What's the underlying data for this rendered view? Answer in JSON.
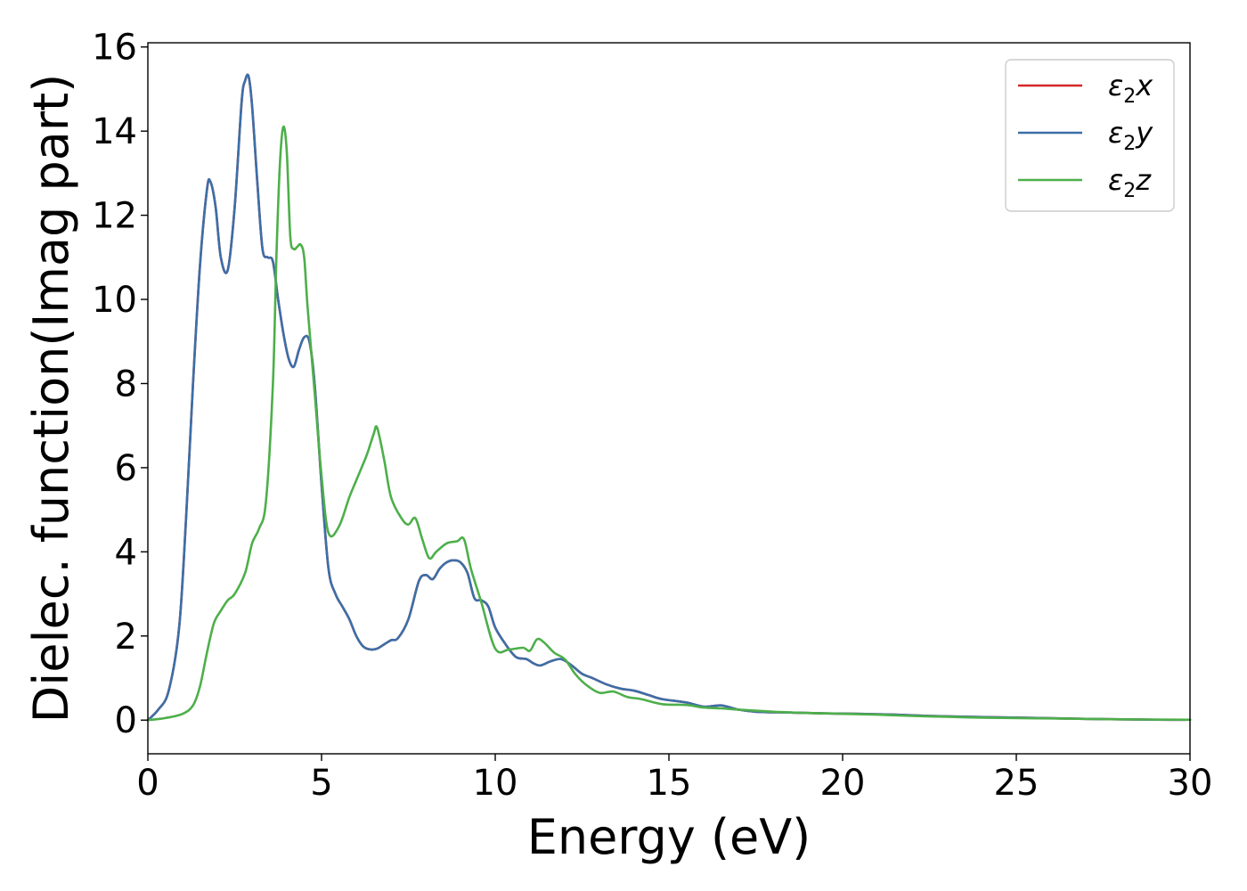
{
  "chart_data": {
    "type": "line",
    "title": "",
    "xlabel": "Energy (eV)",
    "ylabel": "Dielec. function(Imag part)",
    "xlim": [
      0,
      30
    ],
    "ylim": [
      -0.8,
      16.1
    ],
    "xticks": [
      0,
      5,
      10,
      15,
      20,
      25,
      30
    ],
    "yticks": [
      0,
      2,
      4,
      6,
      8,
      10,
      12,
      14,
      16
    ],
    "grid": false,
    "legend_position": "top-right",
    "series": [
      {
        "name": "ε2x",
        "legend_main": "ε",
        "legend_sub": "2",
        "legend_suffix": "x",
        "color": "#d62728",
        "x": [
          0,
          0.3,
          0.6,
          0.9,
          1.1,
          1.3,
          1.5,
          1.7,
          1.8,
          1.95,
          2.1,
          2.3,
          2.5,
          2.7,
          2.8,
          2.9,
          3.0,
          3.15,
          3.3,
          3.45,
          3.6,
          3.75,
          3.9,
          4.05,
          4.2,
          4.35,
          4.5,
          4.65,
          4.8,
          5.0,
          5.2,
          5.4,
          5.6,
          5.8,
          6.0,
          6.2,
          6.4,
          6.6,
          6.8,
          7.0,
          7.2,
          7.5,
          7.8,
          8.0,
          8.2,
          8.4,
          8.6,
          8.8,
          9.0,
          9.2,
          9.4,
          9.6,
          9.8,
          10.0,
          10.3,
          10.6,
          10.9,
          11.1,
          11.3,
          11.6,
          11.9,
          12.2,
          12.5,
          12.8,
          13.2,
          13.6,
          14.0,
          14.4,
          14.8,
          15.5,
          16.0,
          16.5,
          17.0,
          17.5,
          18.5,
          19.5,
          20.5,
          21.5,
          22.5,
          23.5,
          25.0,
          27.0,
          29.0,
          30.0
        ],
        "y": [
          0.0,
          0.25,
          0.7,
          2.2,
          4.8,
          8.0,
          10.8,
          12.6,
          12.8,
          12.2,
          11.0,
          10.7,
          12.2,
          14.7,
          15.2,
          15.3,
          14.6,
          12.8,
          11.2,
          11.0,
          10.9,
          10.0,
          9.2,
          8.6,
          8.4,
          8.8,
          9.1,
          9.0,
          8.0,
          5.6,
          3.6,
          3.0,
          2.7,
          2.4,
          2.0,
          1.75,
          1.68,
          1.7,
          1.8,
          1.9,
          1.95,
          2.4,
          3.3,
          3.45,
          3.35,
          3.6,
          3.75,
          3.8,
          3.75,
          3.5,
          2.9,
          2.85,
          2.7,
          2.2,
          1.8,
          1.5,
          1.45,
          1.35,
          1.3,
          1.4,
          1.45,
          1.3,
          1.1,
          1.0,
          0.85,
          0.75,
          0.7,
          0.6,
          0.5,
          0.42,
          0.32,
          0.35,
          0.25,
          0.2,
          0.18,
          0.16,
          0.15,
          0.13,
          0.1,
          0.08,
          0.06,
          0.03,
          0.01,
          0.01
        ]
      },
      {
        "name": "ε2y",
        "legend_main": "ε",
        "legend_sub": "2",
        "legend_suffix": "y",
        "color": "#3b6fa8",
        "x": [
          0,
          0.3,
          0.6,
          0.9,
          1.1,
          1.3,
          1.5,
          1.7,
          1.8,
          1.95,
          2.1,
          2.3,
          2.5,
          2.7,
          2.8,
          2.9,
          3.0,
          3.15,
          3.3,
          3.45,
          3.6,
          3.75,
          3.9,
          4.05,
          4.2,
          4.35,
          4.5,
          4.65,
          4.8,
          5.0,
          5.2,
          5.4,
          5.6,
          5.8,
          6.0,
          6.2,
          6.4,
          6.6,
          6.8,
          7.0,
          7.2,
          7.5,
          7.8,
          8.0,
          8.2,
          8.4,
          8.6,
          8.8,
          9.0,
          9.2,
          9.4,
          9.6,
          9.8,
          10.0,
          10.3,
          10.6,
          10.9,
          11.1,
          11.3,
          11.6,
          11.9,
          12.2,
          12.5,
          12.8,
          13.2,
          13.6,
          14.0,
          14.4,
          14.8,
          15.5,
          16.0,
          16.5,
          17.0,
          17.5,
          18.5,
          19.5,
          20.5,
          21.5,
          22.5,
          23.5,
          25.0,
          27.0,
          29.0,
          30.0
        ],
        "y": [
          0.0,
          0.25,
          0.7,
          2.2,
          4.8,
          8.0,
          10.8,
          12.6,
          12.8,
          12.2,
          11.0,
          10.7,
          12.2,
          14.7,
          15.2,
          15.3,
          14.6,
          12.8,
          11.2,
          11.0,
          10.9,
          10.0,
          9.2,
          8.6,
          8.4,
          8.8,
          9.1,
          9.0,
          8.0,
          5.6,
          3.6,
          3.0,
          2.7,
          2.4,
          2.0,
          1.75,
          1.68,
          1.7,
          1.8,
          1.9,
          1.95,
          2.4,
          3.3,
          3.45,
          3.35,
          3.6,
          3.75,
          3.8,
          3.75,
          3.5,
          2.9,
          2.85,
          2.7,
          2.2,
          1.8,
          1.5,
          1.45,
          1.35,
          1.3,
          1.4,
          1.45,
          1.3,
          1.1,
          1.0,
          0.85,
          0.75,
          0.7,
          0.6,
          0.5,
          0.42,
          0.32,
          0.35,
          0.25,
          0.2,
          0.18,
          0.16,
          0.15,
          0.13,
          0.1,
          0.08,
          0.06,
          0.03,
          0.01,
          0.01
        ]
      },
      {
        "name": "ε2z",
        "legend_main": "ε",
        "legend_sub": "2",
        "legend_suffix": "z",
        "color": "#4daf4a",
        "x": [
          0,
          0.5,
          1.0,
          1.3,
          1.5,
          1.7,
          1.9,
          2.1,
          2.3,
          2.5,
          2.8,
          3.0,
          3.2,
          3.4,
          3.6,
          3.7,
          3.8,
          3.9,
          4.0,
          4.1,
          4.2,
          4.3,
          4.4,
          4.5,
          4.6,
          4.8,
          5.0,
          5.2,
          5.5,
          5.8,
          6.0,
          6.3,
          6.5,
          6.6,
          6.8,
          7.0,
          7.3,
          7.5,
          7.7,
          7.9,
          8.1,
          8.3,
          8.6,
          8.9,
          9.1,
          9.3,
          9.6,
          10.0,
          10.4,
          10.8,
          11.0,
          11.2,
          11.4,
          11.7,
          12.0,
          12.3,
          12.6,
          13.0,
          13.4,
          13.8,
          14.2,
          14.8,
          15.5,
          16.0,
          16.5,
          17.0,
          18.0,
          19.0,
          20.0,
          21.0,
          22.0,
          23.0,
          24.0,
          26.0,
          28.0,
          30.0
        ],
        "y": [
          0.0,
          0.05,
          0.15,
          0.35,
          0.8,
          1.6,
          2.3,
          2.6,
          2.85,
          3.0,
          3.5,
          4.2,
          4.55,
          5.2,
          8.0,
          11.0,
          13.2,
          14.1,
          13.5,
          11.5,
          11.2,
          11.25,
          11.3,
          11.0,
          9.8,
          7.8,
          5.8,
          4.45,
          4.6,
          5.3,
          5.7,
          6.3,
          6.8,
          6.95,
          6.2,
          5.3,
          4.8,
          4.65,
          4.8,
          4.3,
          3.85,
          4.0,
          4.2,
          4.25,
          4.3,
          3.6,
          2.8,
          1.7,
          1.68,
          1.72,
          1.65,
          1.92,
          1.85,
          1.6,
          1.45,
          1.1,
          0.85,
          0.65,
          0.68,
          0.55,
          0.5,
          0.38,
          0.36,
          0.3,
          0.28,
          0.25,
          0.2,
          0.17,
          0.15,
          0.13,
          0.1,
          0.08,
          0.06,
          0.04,
          0.02,
          0.01
        ]
      }
    ]
  }
}
